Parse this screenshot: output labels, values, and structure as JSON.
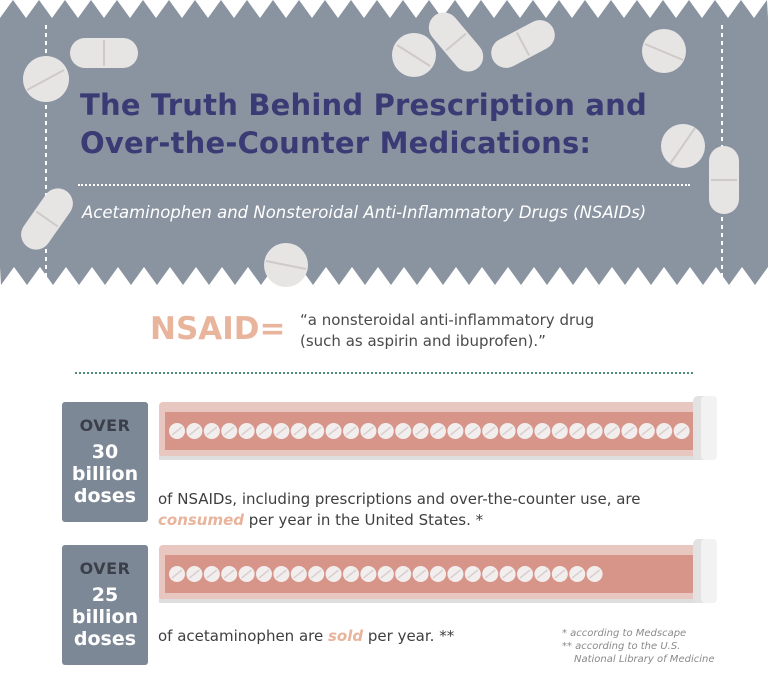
{
  "header": {
    "title_line1": "The Truth Behind Prescription and",
    "title_line2": "Over-the-Counter Medications:",
    "subtitle": "Acetaminophen and Nonsteroidal Anti-Inflammatory Drugs (NSAIDs)"
  },
  "definition": {
    "term": "NSAID=",
    "line1": "“a nonsteroidal anti-inflammatory drug",
    "line2": "(such as aspirin and ibuprofen).”"
  },
  "stats": [
    {
      "over": "OVER",
      "number": "30",
      "unit1": "billion",
      "unit2": "doses",
      "desc_line1": "of NSAIDs, including prescriptions and over-the-counter use, are",
      "desc_accent": "consumed",
      "desc_rest": " per year in the United States. *",
      "pill_count": 30
    },
    {
      "over": "OVER",
      "number": "25",
      "unit1": "billion",
      "unit2": "doses",
      "desc_pre": "of acetaminophen are ",
      "desc_accent": "sold",
      "desc_post": " per year. **",
      "pill_count": 25
    }
  ],
  "footnotes": {
    "note1": "* according to Medscape",
    "note2": "** according to the U.S.",
    "note3": "National Library of Medicine"
  },
  "colors": {
    "banner": "#8a93a0",
    "title": "#3a3a74",
    "accent": "#e8b49c",
    "tube": "#d7958a",
    "box": "#7d8896"
  }
}
